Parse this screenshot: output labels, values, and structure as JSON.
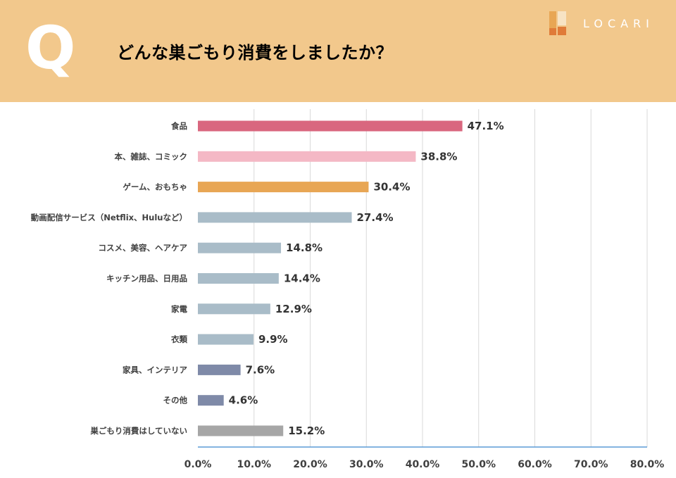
{
  "header": {
    "q_mark": "Q",
    "question": "どんな巣ごもり消費をしましたか？",
    "brand": "LOCARI"
  },
  "colors": {
    "header_bg": "#f2c88c",
    "grid": "#d9d9d9",
    "axis": "#5b9bd5"
  },
  "chart_data": {
    "type": "bar",
    "orientation": "horizontal",
    "title": "どんな巣ごもり消費をしましたか？",
    "xlabel": "",
    "ylabel": "",
    "xlim": [
      0,
      80
    ],
    "grid": true,
    "categories": [
      "食品",
      "本、雑誌、コミック",
      "ゲーム、おもちゃ",
      "動画配信サービス（Netflix、Huluなど）",
      "コスメ、美容、ヘアケア",
      "キッチン用品、日用品",
      "家電",
      "衣類",
      "家具、インテリア",
      "その他",
      "巣ごもり消費はしていない"
    ],
    "values": [
      47.1,
      38.8,
      30.4,
      27.4,
      14.8,
      14.4,
      12.9,
      9.9,
      7.6,
      4.6,
      15.2
    ],
    "value_labels": [
      "47.1%",
      "38.8%",
      "30.4%",
      "27.4%",
      "14.8%",
      "14.4%",
      "12.9%",
      "9.9%",
      "7.6%",
      "4.6%",
      "15.2%"
    ],
    "bar_colors": [
      "#d9677f",
      "#f4b8c5",
      "#e8a654",
      "#a9bcc8",
      "#a9bcc8",
      "#a9bcc8",
      "#a9bcc8",
      "#a9bcc8",
      "#7f8aa8",
      "#7f8aa8",
      "#a6a6a6"
    ],
    "ticks": [
      0,
      10,
      20,
      30,
      40,
      50,
      60,
      70,
      80
    ],
    "tick_labels": [
      "0.0%",
      "10.0%",
      "20.0%",
      "30.0%",
      "40.0%",
      "50.0%",
      "60.0%",
      "70.0%",
      "80.0%"
    ]
  }
}
